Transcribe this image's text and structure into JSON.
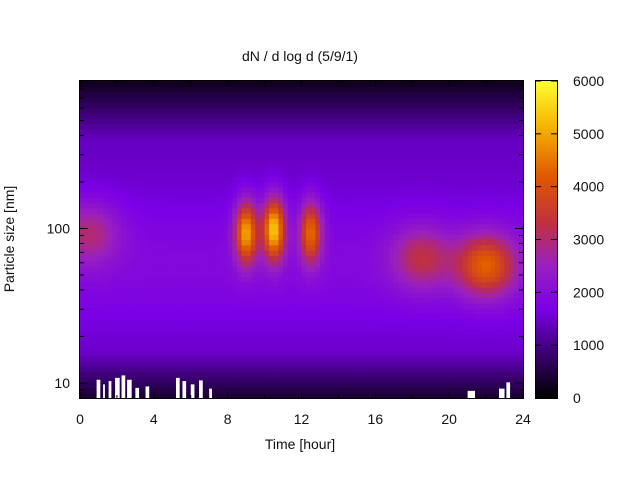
{
  "chart_data": {
    "type": "heatmap",
    "title": "dN / d log d (5/9/1)",
    "xlabel": "Time [hour]",
    "ylabel": "Particle size [nm]",
    "xlim": [
      0,
      24
    ],
    "ylim_nm": [
      8,
      900
    ],
    "y_scale": "log",
    "x_ticks": [
      "0",
      "4",
      "8",
      "12",
      "16",
      "20",
      "24"
    ],
    "y_ticks": [
      "10",
      "100"
    ],
    "y_tick_values": [
      10,
      100
    ],
    "colorbar": {
      "range": [
        0,
        6000
      ],
      "ticks": [
        "0",
        "1000",
        "2000",
        "3000",
        "4000",
        "5000",
        "6000"
      ],
      "tick_values": [
        0,
        1000,
        2000,
        3000,
        4000,
        5000,
        6000
      ],
      "colormap": [
        "#000000",
        "#3a0070",
        "#7a00e6",
        "#a01fb0",
        "#c83018",
        "#e66a00",
        "#ffe800",
        "#ffff30"
      ]
    },
    "features": [
      {
        "time_h": 0.5,
        "size_nm": 95,
        "value": 2600
      },
      {
        "time_h": 9.0,
        "size_nm": 95,
        "value": 4600
      },
      {
        "time_h": 10.5,
        "size_nm": 100,
        "value": 5000
      },
      {
        "time_h": 12.5,
        "size_nm": 95,
        "value": 4000
      },
      {
        "time_h": 18.5,
        "size_nm": 65,
        "value": 2800
      },
      {
        "time_h": 22.0,
        "size_nm": 58,
        "value": 3800
      }
    ],
    "missing_low_size_bins": [
      {
        "time_h": 0.9,
        "width_h": 0.2,
        "height_nm": 10.5
      },
      {
        "time_h": 1.25,
        "width_h": 0.1,
        "height_nm": 9.8
      },
      {
        "time_h": 1.55,
        "width_h": 0.15,
        "height_nm": 10.3
      },
      {
        "time_h": 1.9,
        "width_h": 0.25,
        "height_nm": 10.8
      },
      {
        "time_h": 2.25,
        "width_h": 0.2,
        "height_nm": 11.2
      },
      {
        "time_h": 2.55,
        "width_h": 0.25,
        "height_nm": 10.5
      },
      {
        "time_h": 3.0,
        "width_h": 0.2,
        "height_nm": 9.3
      },
      {
        "time_h": 3.55,
        "width_h": 0.2,
        "height_nm": 9.5
      },
      {
        "time_h": 5.2,
        "width_h": 0.2,
        "height_nm": 10.8
      },
      {
        "time_h": 5.55,
        "width_h": 0.2,
        "height_nm": 10.3
      },
      {
        "time_h": 6.0,
        "width_h": 0.2,
        "height_nm": 9.8
      },
      {
        "time_h": 6.45,
        "width_h": 0.2,
        "height_nm": 10.4
      },
      {
        "time_h": 7.0,
        "width_h": 0.15,
        "height_nm": 9.2
      },
      {
        "time_h": 21.0,
        "width_h": 0.4,
        "height_nm": 8.9
      },
      {
        "time_h": 22.7,
        "width_h": 0.3,
        "height_nm": 9.2
      },
      {
        "time_h": 23.1,
        "width_h": 0.2,
        "height_nm": 10.1
      }
    ]
  }
}
